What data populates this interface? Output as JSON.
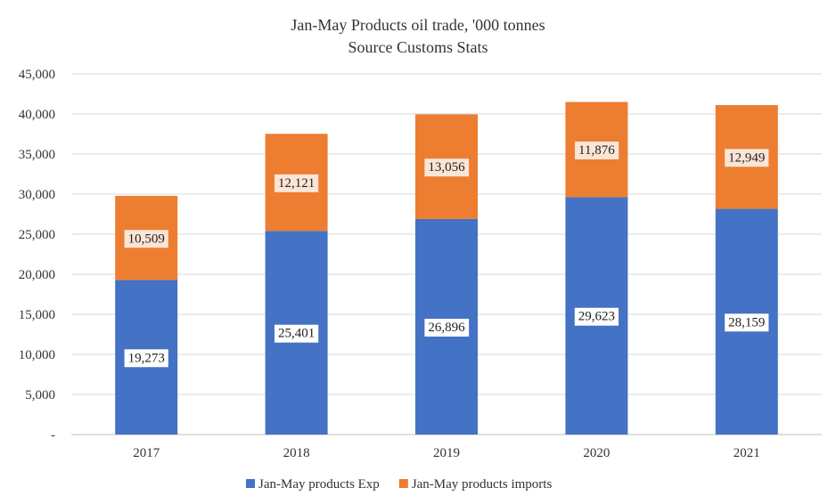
{
  "chart_data": {
    "type": "bar",
    "stacked": true,
    "title": "Jan-May Products oil trade, '000 tonnes",
    "subtitle": "Source Customs Stats",
    "categories": [
      "2017",
      "2018",
      "2019",
      "2020",
      "2021"
    ],
    "series": [
      {
        "name": "Jan-May products Exp",
        "values": [
          19273,
          25401,
          26896,
          29623,
          28159
        ],
        "color": "#4472c4"
      },
      {
        "name": "Jan-May products imports",
        "values": [
          10509,
          12121,
          13056,
          11876,
          12949
        ],
        "color": "#ed7d31"
      }
    ],
    "data_labels": [
      [
        "19,273",
        "25,401",
        "26,896",
        "29,623",
        "28,159"
      ],
      [
        "10,509",
        "12,121",
        "13,056",
        "11,876",
        "12,949"
      ]
    ],
    "y_ticks": [
      0,
      5000,
      10000,
      15000,
      20000,
      25000,
      30000,
      35000,
      40000,
      45000
    ],
    "y_tick_labels": [
      "-",
      "5,000",
      "10,000",
      "15,000",
      "20,000",
      "25,000",
      "30,000",
      "35,000",
      "40,000",
      "45,000"
    ],
    "ylim": [
      0,
      45000
    ],
    "grid": true,
    "legend_position": "bottom"
  }
}
